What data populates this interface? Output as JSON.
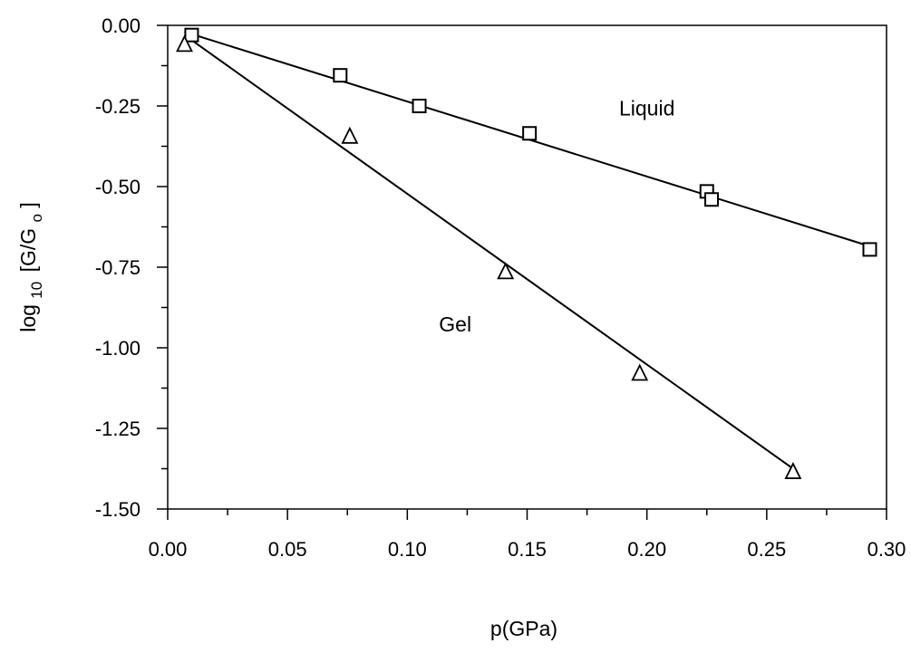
{
  "chart_data": {
    "type": "scatter",
    "xlabel": "p(GPa)",
    "ylabel": "log",
    "ylabel_sub": "10",
    "ylabel_bracket": "[G/G",
    "ylabel_sub2": "o",
    "ylabel_close": "]",
    "xlim": [
      0.0,
      0.3
    ],
    "ylim": [
      -1.5,
      0.0
    ],
    "x_ticks": [
      "0.00",
      "0.05",
      "0.10",
      "0.15",
      "0.20",
      "0.25",
      "0.30"
    ],
    "y_ticks": [
      "0.00",
      "-0.25",
      "-0.50",
      "-0.75",
      "-1.00",
      "-1.25",
      "-1.50"
    ],
    "grid": false,
    "annotations": [
      {
        "text": "Liquid",
        "x": 0.2,
        "y": -0.28
      },
      {
        "text": "Gel",
        "x": 0.12,
        "y": -0.95
      }
    ],
    "series": [
      {
        "marker": "square",
        "x": [
          0.01,
          0.072,
          0.105,
          0.151,
          0.225,
          0.227,
          0.293
        ],
        "y": [
          -0.03,
          -0.155,
          -0.25,
          -0.335,
          -0.515,
          -0.54,
          -0.695
        ],
        "fit": {
          "x": [
            0.007,
            0.293
          ],
          "y": [
            -0.02,
            -0.685
          ]
        }
      },
      {
        "marker": "triangle",
        "x": [
          0.007,
          0.076,
          0.141,
          0.197,
          0.261
        ],
        "y": [
          -0.06,
          -0.345,
          -0.765,
          -1.08,
          -1.385
        ],
        "fit": {
          "x": [
            0.007,
            0.261
          ],
          "y": [
            -0.03,
            -1.375
          ]
        }
      }
    ]
  }
}
